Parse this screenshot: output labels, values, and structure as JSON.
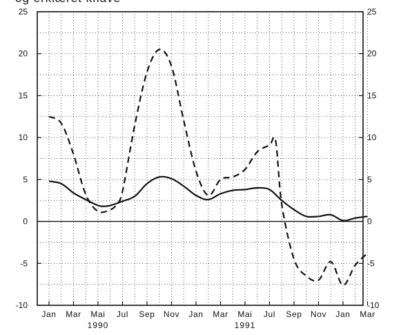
{
  "header": {
    "title_fragment": "og erklæret knave"
  },
  "chart_data": {
    "type": "line",
    "title": "",
    "xlabel": "",
    "ylabel": "",
    "ylim": [
      -10,
      25
    ],
    "yticks": [
      -10,
      -5,
      0,
      5,
      10,
      15,
      20,
      25
    ],
    "grid": true,
    "legend": "none",
    "x_tick_labels": [
      "Jan",
      "Mar",
      "Mai",
      "Jul",
      "Sep",
      "Nov",
      "Jan",
      "Mar",
      "Mai",
      "Jul",
      "Sep",
      "Nov",
      "Jan",
      "Mar"
    ],
    "x_month_step": 2,
    "x_month_count": 27,
    "year_labels": [
      {
        "label": "1990",
        "month_index": 4
      },
      {
        "label": "1991",
        "month_index": 16
      }
    ],
    "series": [
      {
        "style": "solid",
        "color": "#111111",
        "x": [
          0,
          1,
          2,
          3,
          4,
          4.5,
          5,
          6,
          7,
          8,
          9,
          10,
          11,
          12,
          13,
          14,
          15,
          16,
          17,
          18,
          19,
          20,
          21,
          22,
          23,
          24,
          25,
          26
        ],
        "y": [
          4.8,
          4.5,
          3.4,
          2.6,
          1.9,
          1.8,
          1.9,
          2.4,
          3.0,
          4.5,
          5.3,
          5.1,
          4.2,
          3.1,
          2.6,
          3.3,
          3.7,
          3.8,
          4.0,
          3.8,
          2.5,
          1.4,
          0.6,
          0.6,
          0.8,
          0.1,
          0.4,
          0.6
        ]
      },
      {
        "style": "dashed",
        "color": "#111111",
        "x": [
          0,
          1,
          2,
          3,
          4,
          5,
          5.5,
          6,
          7,
          8,
          9,
          10,
          11,
          12,
          13,
          14,
          15,
          16,
          17,
          18,
          18.5,
          19,
          20,
          21,
          22,
          23,
          24,
          25,
          26
        ],
        "y": [
          12.5,
          11.7,
          8.0,
          3.2,
          1.2,
          1.4,
          2.0,
          3.6,
          11.5,
          17.8,
          20.5,
          18.5,
          12.0,
          6.0,
          3.1,
          5.0,
          5.3,
          6.2,
          8.3,
          9.1,
          9.6,
          2.0,
          -4.5,
          -6.5,
          -7.0,
          -4.8,
          -7.6,
          -5.2,
          -3.8
        ]
      }
    ]
  }
}
